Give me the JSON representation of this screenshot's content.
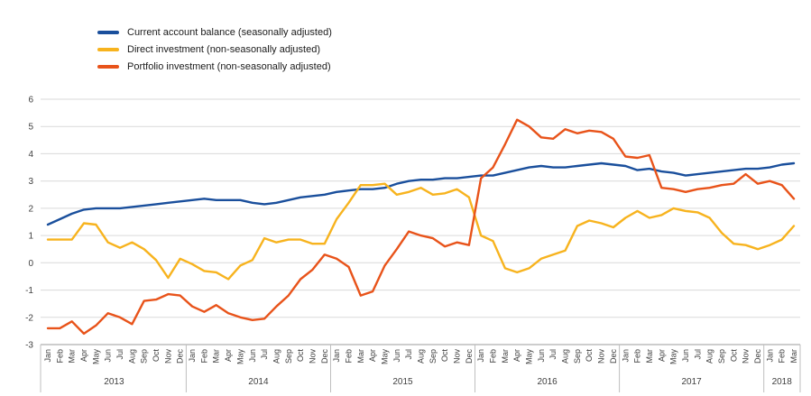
{
  "chart_data": {
    "type": "line",
    "title": "",
    "xlabel": "",
    "ylabel": "",
    "ylim": [
      -3,
      6
    ],
    "yticks": [
      6,
      5,
      4,
      3,
      2,
      1,
      0,
      -1,
      -2,
      -3
    ],
    "grid": true,
    "legend_position": "top-left",
    "colors": {
      "gridline": "#d9d9d9",
      "axis": "#9b9b9b",
      "separator": "#bfbfbf",
      "tick_text": "#404040"
    },
    "categories": [
      "Jan",
      "Feb",
      "Mar",
      "Apr",
      "May",
      "Jun",
      "Jul",
      "Aug",
      "Sep",
      "Oct",
      "Nov",
      "Dec",
      "Jan",
      "Feb",
      "Mar",
      "Apr",
      "May",
      "Jun",
      "Jul",
      "Aug",
      "Sep",
      "Oct",
      "Nov",
      "Dec",
      "Jan",
      "Feb",
      "Mar",
      "Apr",
      "May",
      "Jun",
      "Jul",
      "Aug",
      "Sep",
      "Oct",
      "Nov",
      "Dec",
      "Jan",
      "Feb",
      "Mar",
      "Apr",
      "May",
      "Jun",
      "Jul",
      "Aug",
      "Sep",
      "Oct",
      "Nov",
      "Dec",
      "Jan",
      "Feb",
      "Mar",
      "Apr",
      "May",
      "Jun",
      "Jul",
      "Aug",
      "Sep",
      "Oct",
      "Nov",
      "Dec",
      "Jan",
      "Feb",
      "Mar"
    ],
    "year_groups": [
      {
        "year": "2013",
        "months": 12
      },
      {
        "year": "2014",
        "months": 12
      },
      {
        "year": "2015",
        "months": 12
      },
      {
        "year": "2016",
        "months": 12
      },
      {
        "year": "2017",
        "months": 12
      },
      {
        "year": "2018",
        "months": 3
      }
    ],
    "series": [
      {
        "name": "Current account balance (seasonally adjusted)",
        "color": "#1a4f9c",
        "values": [
          1.4,
          1.6,
          1.8,
          1.95,
          2.0,
          2.0,
          2.0,
          2.05,
          2.1,
          2.15,
          2.2,
          2.25,
          2.3,
          2.35,
          2.3,
          2.3,
          2.3,
          2.2,
          2.15,
          2.2,
          2.3,
          2.4,
          2.45,
          2.5,
          2.6,
          2.65,
          2.7,
          2.7,
          2.75,
          2.9,
          3.0,
          3.05,
          3.05,
          3.1,
          3.1,
          3.15,
          3.2,
          3.2,
          3.3,
          3.4,
          3.5,
          3.55,
          3.5,
          3.5,
          3.55,
          3.6,
          3.65,
          3.6,
          3.55,
          3.4,
          3.45,
          3.35,
          3.3,
          3.2,
          3.25,
          3.3,
          3.35,
          3.4,
          3.45,
          3.45,
          3.5,
          3.6,
          3.65
        ]
      },
      {
        "name": "Direct investment (non-seasonally adjusted)",
        "color": "#f7b31e",
        "values": [
          0.85,
          0.85,
          0.85,
          1.45,
          1.4,
          0.75,
          0.55,
          0.75,
          0.5,
          0.1,
          -0.55,
          0.15,
          -0.05,
          -0.3,
          -0.35,
          -0.6,
          -0.1,
          0.1,
          0.9,
          0.75,
          0.85,
          0.85,
          0.7,
          0.7,
          1.6,
          2.2,
          2.85,
          2.85,
          2.9,
          2.5,
          2.6,
          2.75,
          2.5,
          2.55,
          2.7,
          2.4,
          1.0,
          0.8,
          -0.2,
          -0.35,
          -0.2,
          0.15,
          0.3,
          0.45,
          1.35,
          1.55,
          1.45,
          1.3,
          1.65,
          1.9,
          1.65,
          1.75,
          2.0,
          1.9,
          1.85,
          1.65,
          1.1,
          0.7,
          0.65,
          0.5,
          0.65,
          0.85,
          1.35
        ]
      },
      {
        "name": "Portfolio investment (non-seasonally adjusted)",
        "color": "#e8531a",
        "values": [
          -2.4,
          -2.4,
          -2.15,
          -2.6,
          -2.3,
          -1.85,
          -2.0,
          -2.25,
          -1.4,
          -1.35,
          -1.15,
          -1.2,
          -1.6,
          -1.8,
          -1.55,
          -1.85,
          -2.0,
          -2.1,
          -2.05,
          -1.6,
          -1.2,
          -0.6,
          -0.25,
          0.3,
          0.15,
          -0.15,
          -1.2,
          -1.05,
          -0.1,
          0.5,
          1.15,
          1.0,
          0.9,
          0.6,
          0.75,
          0.65,
          3.1,
          3.5,
          4.35,
          5.25,
          5.0,
          4.6,
          4.55,
          4.9,
          4.75,
          4.85,
          4.8,
          4.55,
          3.9,
          3.85,
          3.95,
          2.75,
          2.7,
          2.6,
          2.7,
          2.75,
          2.85,
          2.9,
          3.25,
          2.9,
          3.0,
          2.85,
          2.35
        ]
      }
    ]
  }
}
